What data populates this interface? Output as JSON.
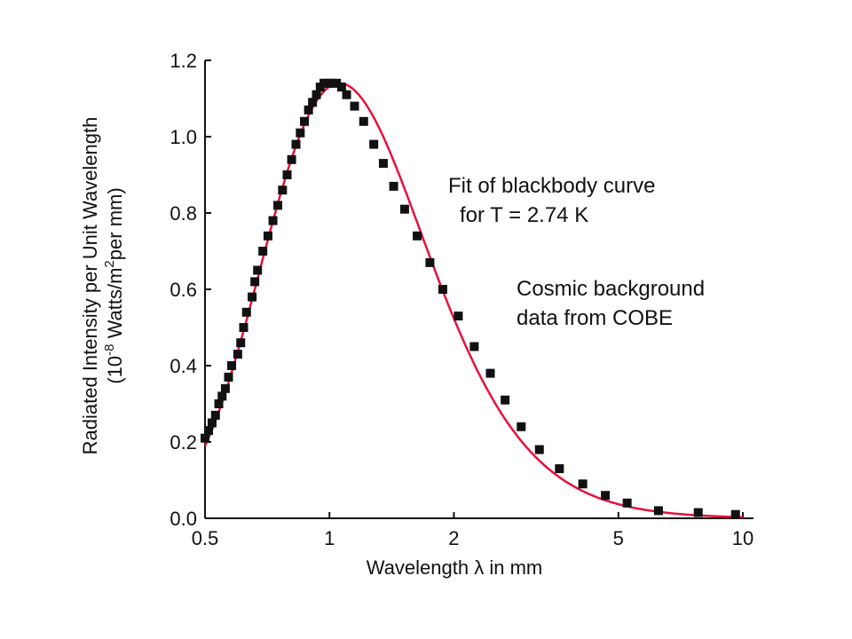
{
  "chart_data": {
    "type": "scatter",
    "x_scale": "log",
    "xlim": [
      0.5,
      10
    ],
    "ylim": [
      0.0,
      1.2
    ],
    "xticks": [
      "0.5",
      "1",
      "2",
      "5",
      "10"
    ],
    "xtick_values": [
      0.5,
      1,
      2,
      5,
      10
    ],
    "yticks": [
      "0.0",
      "0.2",
      "0.4",
      "0.6",
      "0.8",
      "1.0",
      "1.2"
    ],
    "ytick_values": [
      0.0,
      0.2,
      0.4,
      0.6,
      0.8,
      1.0,
      1.2
    ],
    "xlabel_pre": "Wavelength ",
    "xlabel_symbol": "λ",
    "xlabel_post": " in mm",
    "ylabel_line1": "Radiated Intensity per Unit Wavelength",
    "ylabel_line2": {
      "open": "(10",
      "exp": "-8",
      "mid": " Watts/m",
      "exp2": "2",
      "close": "per mm)"
    },
    "annotations": {
      "fit_line1": "Fit of blackbody curve",
      "fit_line2": "for T = 2.74 K",
      "data_line1": "Cosmic background",
      "data_line2": "data from COBE"
    },
    "grid": false,
    "colors": {
      "fit_curve": "#e8103c",
      "markers": "#111111",
      "axes": "#111111"
    },
    "series": [
      {
        "kind": "line",
        "temperature_K": 2.74,
        "peak_value": 1.14
      },
      {
        "kind": "markers",
        "points": [
          [
            0.5,
            0.21
          ],
          [
            0.51,
            0.23
          ],
          [
            0.52,
            0.25
          ],
          [
            0.53,
            0.27
          ],
          [
            0.54,
            0.3
          ],
          [
            0.55,
            0.32
          ],
          [
            0.56,
            0.34
          ],
          [
            0.57,
            0.37
          ],
          [
            0.58,
            0.4
          ],
          [
            0.6,
            0.43
          ],
          [
            0.61,
            0.46
          ],
          [
            0.62,
            0.5
          ],
          [
            0.63,
            0.54
          ],
          [
            0.65,
            0.58
          ],
          [
            0.66,
            0.62
          ],
          [
            0.67,
            0.65
          ],
          [
            0.69,
            0.7
          ],
          [
            0.71,
            0.74
          ],
          [
            0.73,
            0.78
          ],
          [
            0.75,
            0.82
          ],
          [
            0.77,
            0.86
          ],
          [
            0.79,
            0.9
          ],
          [
            0.81,
            0.94
          ],
          [
            0.83,
            0.98
          ],
          [
            0.85,
            1.01
          ],
          [
            0.87,
            1.04
          ],
          [
            0.89,
            1.07
          ],
          [
            0.91,
            1.09
          ],
          [
            0.93,
            1.11
          ],
          [
            0.95,
            1.13
          ],
          [
            0.97,
            1.14
          ],
          [
            0.99,
            1.14
          ],
          [
            1.01,
            1.14
          ],
          [
            1.04,
            1.14
          ],
          [
            1.07,
            1.13
          ],
          [
            1.1,
            1.11
          ],
          [
            1.15,
            1.08
          ],
          [
            1.21,
            1.04
          ],
          [
            1.28,
            0.98
          ],
          [
            1.35,
            0.93
          ],
          [
            1.43,
            0.87
          ],
          [
            1.52,
            0.81
          ],
          [
            1.63,
            0.74
          ],
          [
            1.75,
            0.67
          ],
          [
            1.88,
            0.6
          ],
          [
            2.05,
            0.53
          ],
          [
            2.24,
            0.45
          ],
          [
            2.45,
            0.38
          ],
          [
            2.66,
            0.31
          ],
          [
            2.91,
            0.24
          ],
          [
            3.22,
            0.18
          ],
          [
            3.6,
            0.13
          ],
          [
            4.1,
            0.09
          ],
          [
            4.65,
            0.06
          ],
          [
            5.25,
            0.04
          ],
          [
            6.25,
            0.02
          ],
          [
            7.8,
            0.015
          ],
          [
            9.6,
            0.01
          ]
        ]
      }
    ]
  }
}
